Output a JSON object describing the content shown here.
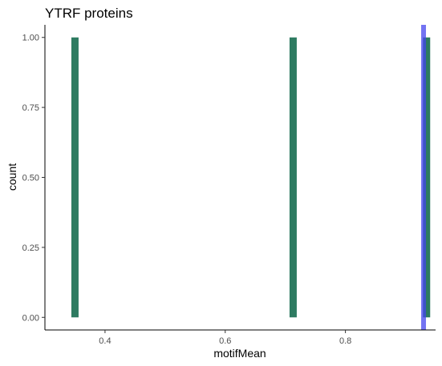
{
  "chart_data": {
    "type": "bar",
    "title": "YTRF proteins",
    "xlabel": "motifMean",
    "ylabel": "count",
    "xlim": [
      0.3,
      0.95
    ],
    "ylim": [
      -0.045,
      1.045
    ],
    "x_ticks": [
      0.4,
      0.6,
      0.8
    ],
    "x_tick_labels": [
      "0.4",
      "0.6",
      "0.8"
    ],
    "y_ticks": [
      0.0,
      0.25,
      0.5,
      0.75,
      1.0
    ],
    "y_tick_labels": [
      "0.00",
      "0.25",
      "0.50",
      "0.75",
      "1.00"
    ],
    "bin_width": 0.012,
    "bars": [
      {
        "x": 0.35,
        "count": 1
      },
      {
        "x": 0.713,
        "count": 1
      },
      {
        "x": 0.935,
        "count": 1
      }
    ],
    "vline": {
      "x": 0.93,
      "color": "#4444ee"
    },
    "bar_color": "#2e7b61",
    "grid": false,
    "legend": "none"
  }
}
